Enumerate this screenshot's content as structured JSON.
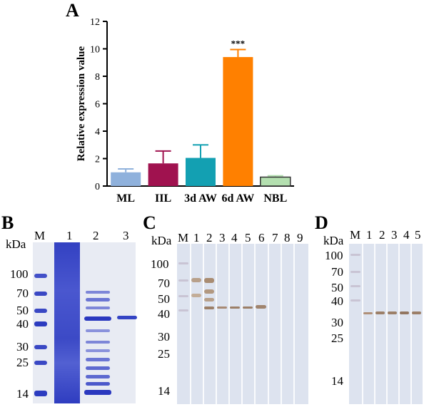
{
  "panels": {
    "A": "A",
    "B": "B",
    "C": "C",
    "D": "D"
  },
  "chart_data": {
    "type": "bar",
    "ylabel": "Relative expression value",
    "ylim": [
      0,
      12
    ],
    "yticks": [
      "0",
      "2",
      "4",
      "6",
      "8",
      "10",
      "12"
    ],
    "categories": [
      "ML",
      "IIL",
      "3d AW",
      "6d AW",
      "NBL"
    ],
    "values": [
      1.0,
      1.65,
      2.05,
      9.4,
      0.65
    ],
    "errors": [
      0.25,
      0.9,
      0.95,
      0.55,
      0.1
    ],
    "colors": [
      "#8fb1dc",
      "#a0124f",
      "#13a0b2",
      "#ff8000",
      "#b4e0b0"
    ],
    "annotations": [
      {
        "category": "6d AW",
        "text": "***"
      }
    ]
  },
  "gels": {
    "unit": "kDa",
    "B": {
      "lanes": [
        "M",
        "1",
        "2",
        "3"
      ],
      "markers": [
        "100",
        "70",
        "50",
        "40",
        "30",
        "25",
        "14"
      ]
    },
    "C": {
      "lanes": [
        "M",
        "1",
        "2",
        "3",
        "4",
        "5",
        "6",
        "7",
        "8",
        "9"
      ],
      "markers": [
        "100",
        "70",
        "50",
        "40",
        "30",
        "25",
        "14"
      ]
    },
    "D": {
      "lanes": [
        "M",
        "1",
        "2",
        "3",
        "4",
        "5"
      ],
      "markers": [
        "100",
        "70",
        "50",
        "40",
        "30",
        "25",
        "14"
      ]
    }
  }
}
